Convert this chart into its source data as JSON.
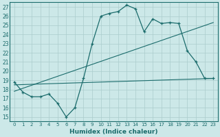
{
  "xlabel": "Humidex (Indice chaleur)",
  "bg_color": "#cce8e8",
  "line_color": "#1a6b6b",
  "grid_color": "#aacccc",
  "xlim": [
    -0.5,
    23.5
  ],
  "ylim": [
    14.5,
    27.5
  ],
  "xticks": [
    0,
    1,
    2,
    3,
    4,
    5,
    6,
    7,
    8,
    9,
    10,
    11,
    12,
    13,
    14,
    15,
    16,
    17,
    18,
    19,
    20,
    21,
    22,
    23
  ],
  "yticks": [
    15,
    16,
    17,
    18,
    19,
    20,
    21,
    22,
    23,
    24,
    25,
    26,
    27
  ],
  "line1_x": [
    0,
    1,
    2,
    3,
    4,
    5,
    6,
    7,
    8,
    9,
    10,
    11,
    12,
    13,
    14,
    15,
    16,
    17,
    18,
    19,
    20,
    21,
    22,
    23
  ],
  "line1_y": [
    18.8,
    17.7,
    17.2,
    17.2,
    17.5,
    16.5,
    15.0,
    16.0,
    19.2,
    23.0,
    26.0,
    26.3,
    26.5,
    27.2,
    26.8,
    24.3,
    25.7,
    25.2,
    25.3,
    25.2,
    22.2,
    21.0,
    19.2,
    19.2
  ],
  "line2_x": [
    0,
    23
  ],
  "line2_y": [
    18.5,
    19.2
  ],
  "line3_x": [
    0,
    23
  ],
  "line3_y": [
    17.8,
    25.3
  ]
}
